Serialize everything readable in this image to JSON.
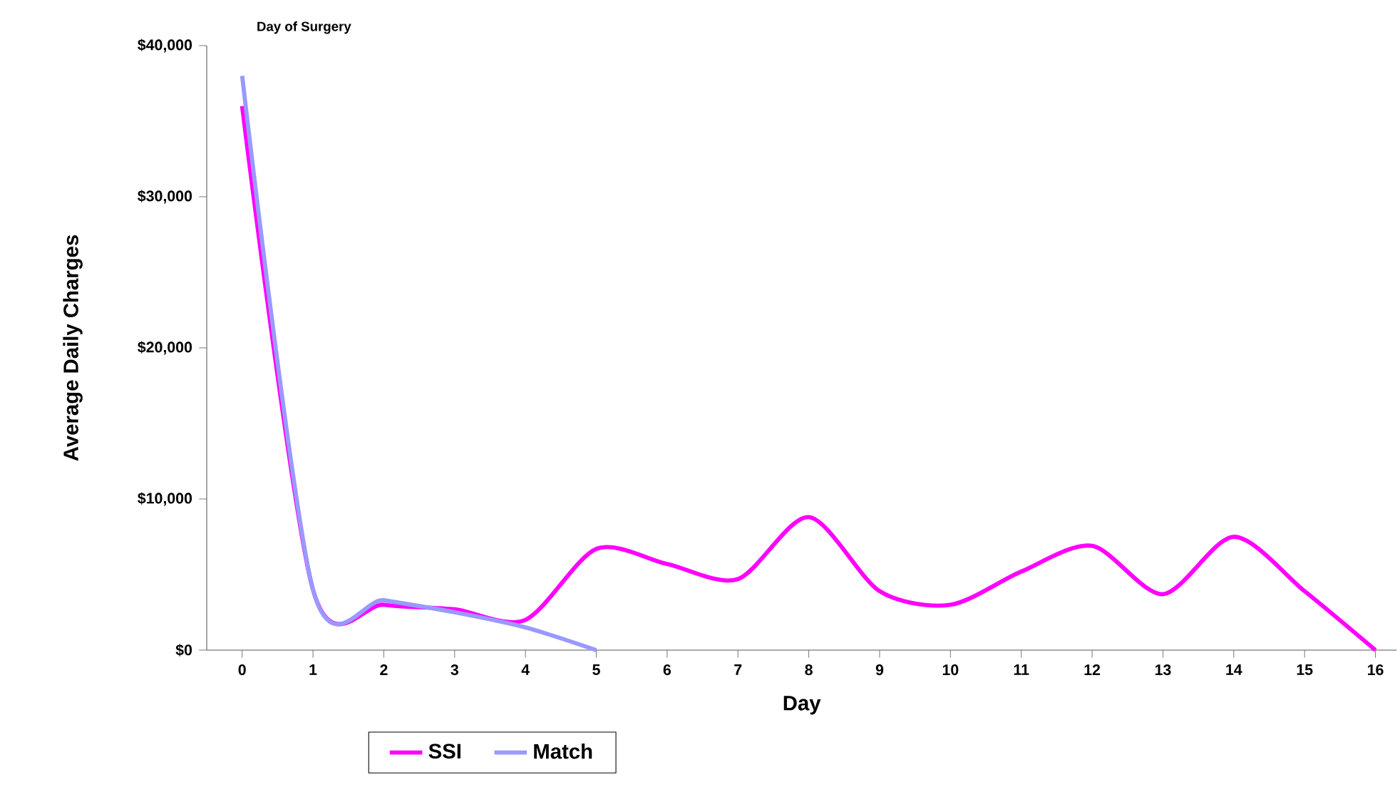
{
  "chart_data": {
    "type": "line",
    "xlabel": "Day",
    "ylabel": "Average Daily Charges",
    "annotations": [
      "Day of Surgery"
    ],
    "xlim": [
      -0.5,
      16.3
    ],
    "xticks": [
      0,
      1,
      2,
      3,
      4,
      5,
      6,
      7,
      8,
      9,
      10,
      11,
      12,
      13,
      14,
      15,
      16
    ],
    "ylim": [
      0,
      40000
    ],
    "yticks": [
      {
        "value": 0,
        "label": "$0"
      },
      {
        "value": 10000,
        "label": "$10,000"
      },
      {
        "value": 20000,
        "label": "$20,000"
      },
      {
        "value": 30000,
        "label": "$30,000"
      },
      {
        "value": 40000,
        "label": "$40,000"
      }
    ],
    "grid": false,
    "legend": "bottom",
    "marker": "none",
    "line_style": "solid",
    "series": [
      {
        "name": "SSI",
        "color": "#ff00ff",
        "x": [
          0,
          1,
          2,
          3,
          4,
          5,
          6,
          7,
          8,
          9,
          10,
          11,
          12,
          13,
          14,
          15,
          16
        ],
        "values": [
          36000,
          4000,
          3000,
          2700,
          2000,
          6700,
          5700,
          4700,
          8800,
          3900,
          3000,
          5200,
          6900,
          3700,
          7500,
          3900,
          0
        ]
      },
      {
        "name": "Match",
        "color": "#9999ff",
        "x": [
          0,
          1,
          2,
          3,
          4,
          5
        ],
        "values": [
          38000,
          4000,
          3300,
          2500,
          1500,
          0
        ]
      }
    ]
  }
}
